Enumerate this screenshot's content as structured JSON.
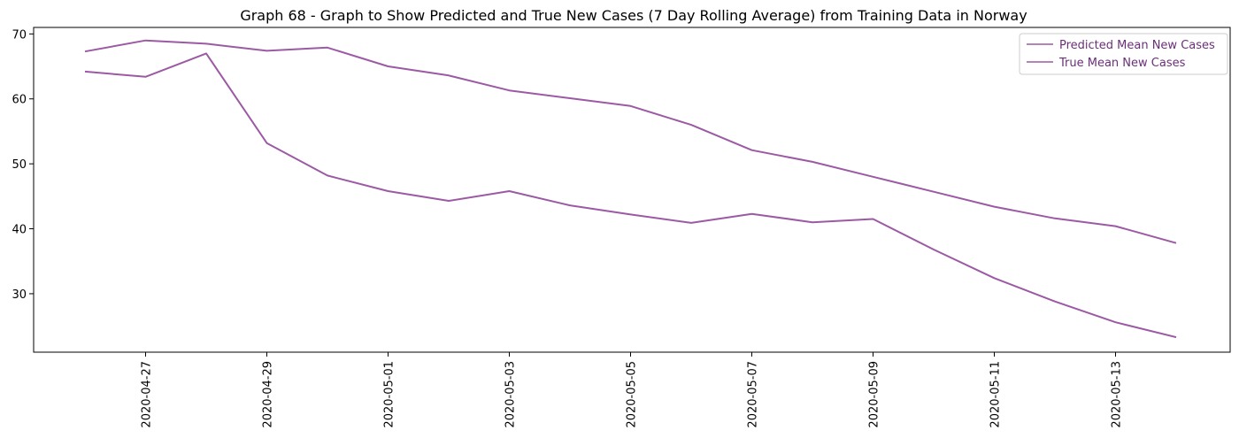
{
  "chart_data": {
    "type": "line",
    "title": "Graph 68 - Graph to Show Predicted and True New Cases (7 Day Rolling Average) from Training Data in Norway",
    "xlabel": "",
    "ylabel": "",
    "x": [
      "2020-04-26",
      "2020-04-27",
      "2020-04-28",
      "2020-04-29",
      "2020-04-30",
      "2020-05-01",
      "2020-05-02",
      "2020-05-03",
      "2020-05-04",
      "2020-05-05",
      "2020-05-06",
      "2020-05-07",
      "2020-05-08",
      "2020-05-09",
      "2020-05-10",
      "2020-05-11",
      "2020-05-12",
      "2020-05-13",
      "2020-05-14"
    ],
    "x_tick_labels": [
      "2020-04-27",
      "2020-04-29",
      "2020-05-01",
      "2020-05-03",
      "2020-05-05",
      "2020-05-07",
      "2020-05-09",
      "2020-05-11",
      "2020-05-13"
    ],
    "y_ticks": [
      30,
      40,
      50,
      60,
      70
    ],
    "ylim": [
      21,
      71
    ],
    "grid": false,
    "legend_position": "top-right",
    "series": [
      {
        "name": "Predicted Mean New Cases",
        "color": "#9c5aa4",
        "values": [
          67.3,
          69.0,
          68.5,
          67.4,
          67.9,
          65.0,
          63.6,
          61.3,
          60.1,
          58.9,
          56.0,
          52.1,
          50.3,
          48.0,
          45.7,
          43.4,
          41.6,
          40.4,
          37.8
        ]
      },
      {
        "name": "True Mean New Cases",
        "color": "#9c5aa4",
        "values": [
          64.2,
          63.4,
          67.0,
          53.2,
          48.2,
          45.8,
          44.3,
          45.8,
          43.6,
          42.2,
          40.9,
          42.3,
          41.0,
          41.5,
          36.8,
          32.4,
          28.8,
          25.6,
          23.3
        ]
      }
    ]
  }
}
